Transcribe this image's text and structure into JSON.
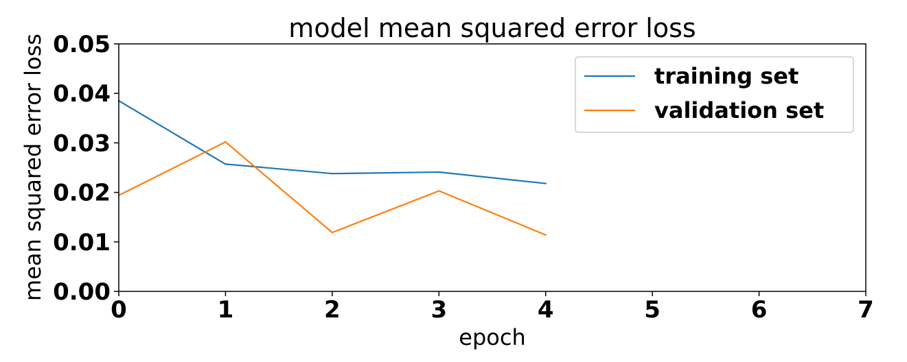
{
  "chart_data": {
    "type": "line",
    "title": "model mean squared error loss",
    "xlabel": "epoch",
    "ylabel": "mean squared error loss",
    "xlim": [
      0,
      7
    ],
    "ylim": [
      0,
      0.05
    ],
    "xticks": [
      0,
      1,
      2,
      3,
      4,
      5,
      6,
      7
    ],
    "xtick_labels": [
      "0",
      "1",
      "2",
      "3",
      "4",
      "5",
      "6",
      "7"
    ],
    "yticks": [
      0,
      0.01,
      0.02,
      0.03,
      0.04,
      0.05
    ],
    "ytick_labels": [
      "0.00",
      "0.01",
      "0.02",
      "0.03",
      "0.04",
      "0.05"
    ],
    "grid": false,
    "legend_position": "top-right",
    "series": [
      {
        "name": "training set",
        "color": "#1f77b4",
        "x": [
          0,
          1,
          2,
          3,
          4
        ],
        "y": [
          0.0385,
          0.0257,
          0.0238,
          0.0241,
          0.0218
        ]
      },
      {
        "name": "validation set",
        "color": "#ff7f0e",
        "x": [
          0,
          1,
          2,
          3,
          4
        ],
        "y": [
          0.0194,
          0.0302,
          0.0119,
          0.0203,
          0.0114
        ]
      }
    ]
  }
}
